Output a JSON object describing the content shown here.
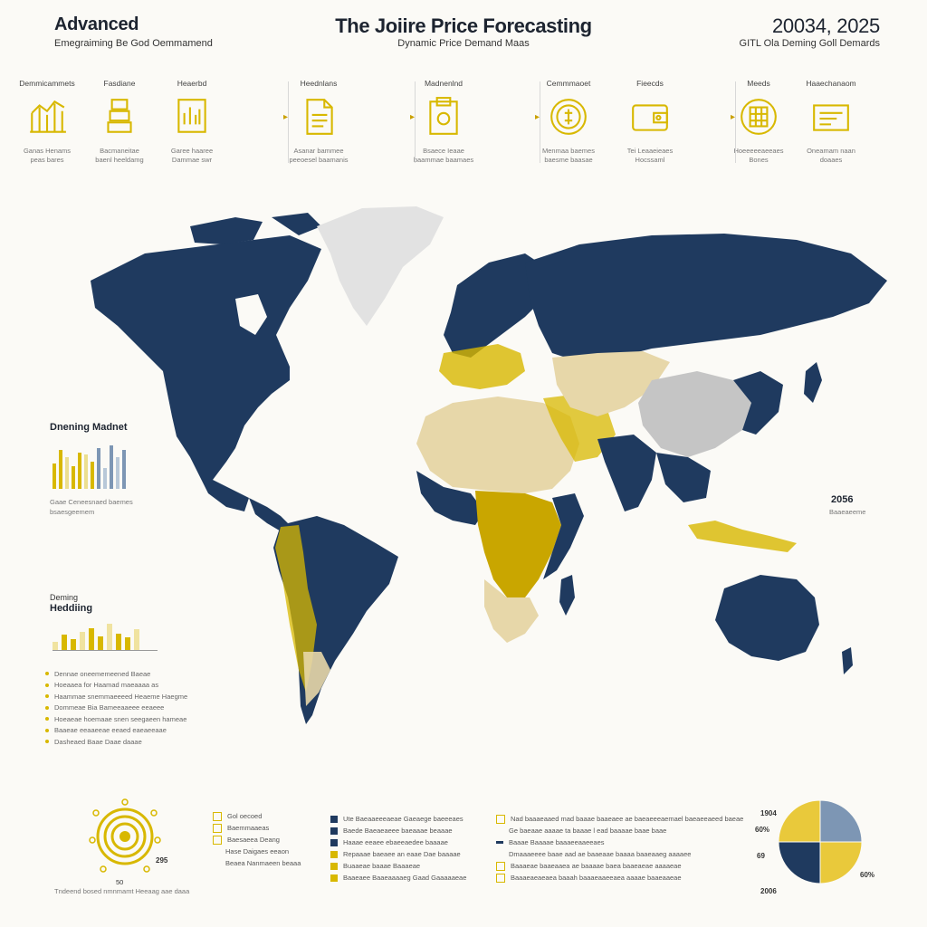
{
  "header": {
    "left_title": "Advanced",
    "left_sub": "Emegraiming Be God Oemmamend",
    "center_title": "The Joiire Price Forecasting",
    "center_sub": "Dynamic Price Demand Maas",
    "right_title": "20034, 2025",
    "right_sub": "GITL Ola Deming Goll Demards"
  },
  "process": [
    {
      "label": "Demmicammets",
      "icon": "bar-chart-icon",
      "cap1": "Ganas Henams",
      "cap2": "peas bares"
    },
    {
      "label": "Fasdiane",
      "icon": "gold-bar-icon",
      "cap1": "Bacmaneitae",
      "cap2": "baenl heeldamg"
    },
    {
      "label": "Heaerbd",
      "icon": "document-chart-icon",
      "cap1": "Garee haaree",
      "cap2": "Dammae swr"
    },
    {
      "label": "Heednlans",
      "icon": "file-icon",
      "cap1": "Asanar bammee",
      "cap2": "peeoesel baamanis"
    },
    {
      "label": "Madnenlnd",
      "icon": "report-icon",
      "cap1": "Bsaece Ieaae",
      "cap2": "baammae baamaes"
    },
    {
      "label": "Cemmmaoet",
      "icon": "coin-icon",
      "cap1": "Menmaa baemes",
      "cap2": "baesme baasae"
    },
    {
      "label": "Fieecds",
      "icon": "wallet-icon",
      "cap1": "Tei Leaaeieaes",
      "cap2": "Hocssaml"
    },
    {
      "label": "Meeds",
      "icon": "circle-grid-icon",
      "cap1": "Hoeeeeeaeeaes",
      "cap2": "Bones"
    },
    {
      "label": "Haaechanaom",
      "icon": "card-icon",
      "cap1": "Oneamam naan",
      "cap2": "doaaes"
    }
  ],
  "colors": {
    "navy": "#1f3a5f",
    "gold": "#d8b800",
    "sand": "#e7d7a9",
    "light_gray": "#e2e2e2",
    "steel": "#7d96b4"
  },
  "left_panel": {
    "market_title": "Dnening Madnet",
    "market_cap1": "Gaae Ceneesnaed baemes",
    "market_cap2": "bsaesgeemem",
    "market_bars": [
      0.55,
      0.85,
      0.7,
      0.5,
      0.8,
      0.75,
      0.6,
      0.9,
      0.45,
      0.95,
      0.7,
      0.85
    ],
    "hedging_pre": "Deming",
    "hedging_title": "Heddiing",
    "hedging_bars": [
      0.3,
      0.55,
      0.4,
      0.65,
      0.8,
      0.5,
      0.95,
      0.6,
      0.45,
      0.75
    ],
    "bullets": [
      "Dennae oneememeened Baeae",
      "Hoeaaea for Haamad maeaaaa as",
      "Haammae snemmaeeeed Heaeme Haegme",
      "Dommeae Bia Bameeaaeee eeaeee",
      "Hoeaeae hoemaae snen seegaeen hameae",
      "Baaeae eeaaeeae eeaed eaeaeeaae",
      "Dasheaed Baae Daae daaae"
    ]
  },
  "right_note": {
    "year": "2056",
    "caption": "Baaeaeeme"
  },
  "bottom": {
    "coin_value": "295",
    "coin_under": "50",
    "coin_caption": "Tndeend bosed nmnmamt Heeaag aae daaa",
    "col1": [
      {
        "icon": "coin-square-icon",
        "text": "Gol oecoed"
      },
      {
        "icon": "coin-square-icon",
        "text": "Baemmaaeas"
      },
      {
        "icon": "coin-square-icon",
        "text": "Baesaeea Deang"
      },
      {
        "icon": "none",
        "text": "Hase Daigaes eeaon"
      },
      {
        "icon": "none",
        "text": "Beaea Nanmaeen beaaa"
      }
    ],
    "col2": [
      {
        "icon": "navy-square",
        "text": "Ute Baeaaeeeaeae Gaeaege baeeeaes"
      },
      {
        "icon": "navy-square",
        "text": "Baede Baeaeaeee baeaaae beaaae"
      },
      {
        "icon": "navy-square",
        "text": "Haaae eeaee ebaeeaedee baaaae"
      },
      {
        "icon": "gold-square",
        "text": "Repaaae baeaee an eaae Dae baaaae"
      },
      {
        "icon": "gold-square",
        "text": "Buaaeae baaae Baaaeae"
      },
      {
        "icon": "gold-square",
        "text": "Baaeaee Baaeaaaaeg Gaad Gaaaaaeae"
      }
    ],
    "col3": [
      {
        "icon": "check-icon",
        "text": "Nad baaaeaaed mad baaae baaeaee ae baeaeeeaemael baeaeeaeed baeae"
      },
      {
        "icon": "none",
        "text": "Ge baeaae aaaae ta baaae l ead baaaae baae baae"
      },
      {
        "icon": "navy-line",
        "text": "Baaae Baaaae baaaeeaaeeaes"
      },
      {
        "icon": "none",
        "text": "Dmaaaeeee baae aad ae baaeaae baaaa baaeaaeg aaaaee"
      },
      {
        "icon": "check-icon",
        "text": "Baaaeae baaeaaea ae baaaae baea baaeaeae aaaaeae"
      },
      {
        "icon": "square-icon",
        "text": "Baaaeaeaeaea baaah baaaeaaeeaea aaaae baaeaaeae"
      }
    ]
  },
  "chart_data": {
    "type": "pie",
    "title": "",
    "slices": [
      {
        "label": "1904",
        "value": 25,
        "color": "#7d96b4"
      },
      {
        "label": "606",
        "value": 25,
        "color": "#e9c93b"
      },
      {
        "label": "2008",
        "value": 25,
        "color": "#1f3a5f"
      },
      {
        "label": "606",
        "value": 25,
        "color": "#e9c93b"
      }
    ],
    "labels_shown": {
      "top": "1904",
      "mid_top": "60%",
      "mid": "69",
      "bottom": "2006",
      "right": "60%"
    }
  }
}
